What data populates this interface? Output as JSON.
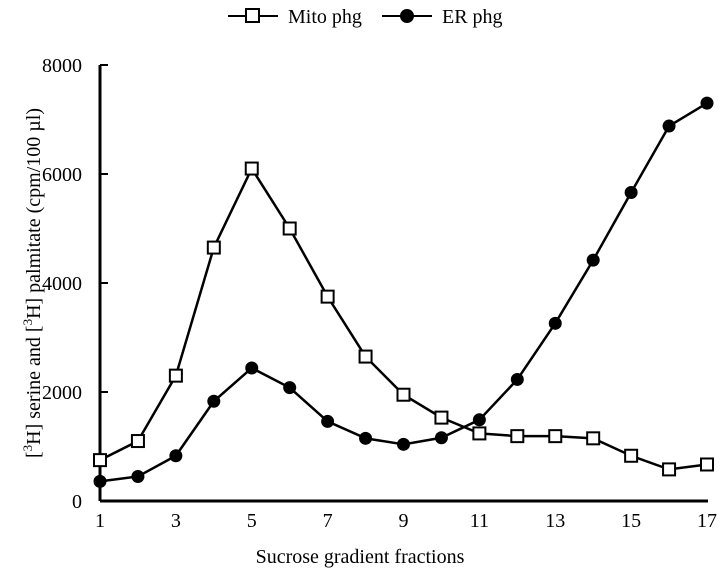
{
  "chart_data": {
    "type": "line",
    "title": "",
    "xlabel": "Sucrose gradient fractions",
    "ylabel": "[3H] serine and [3H] palmitate (cpm/100 µl)",
    "ylabel_parts": {
      "open1": "[",
      "sup1": "3",
      "mid": "H] serine and [",
      "sup2": "3",
      "end": "H] palmitate (cpm/100 µl)"
    },
    "x": [
      1,
      2,
      3,
      4,
      5,
      6,
      7,
      8,
      9,
      10,
      11,
      12,
      13,
      14,
      15,
      16,
      17
    ],
    "xticks": [
      "1",
      "3",
      "5",
      "7",
      "9",
      "11",
      "13",
      "15",
      "17"
    ],
    "yticks": [
      "0",
      "2000",
      "4000",
      "6000",
      "8000"
    ],
    "ylim": [
      0,
      8000
    ],
    "xlim": [
      1,
      17
    ],
    "grid": false,
    "legend_position": "top-center",
    "series": [
      {
        "name": "Mito phg",
        "marker": "open-square",
        "color": "#000000",
        "values": [
          750,
          1100,
          2300,
          4650,
          6100,
          5000,
          3750,
          2650,
          1950,
          1530,
          1240,
          1190,
          1190,
          1150,
          830,
          580,
          670
        ]
      },
      {
        "name": "ER phg",
        "marker": "filled-circle",
        "color": "#000000",
        "values": [
          360,
          450,
          830,
          1830,
          2440,
          2080,
          1460,
          1150,
          1040,
          1160,
          1490,
          2230,
          3260,
          4420,
          5660,
          6880,
          7300
        ]
      }
    ]
  }
}
